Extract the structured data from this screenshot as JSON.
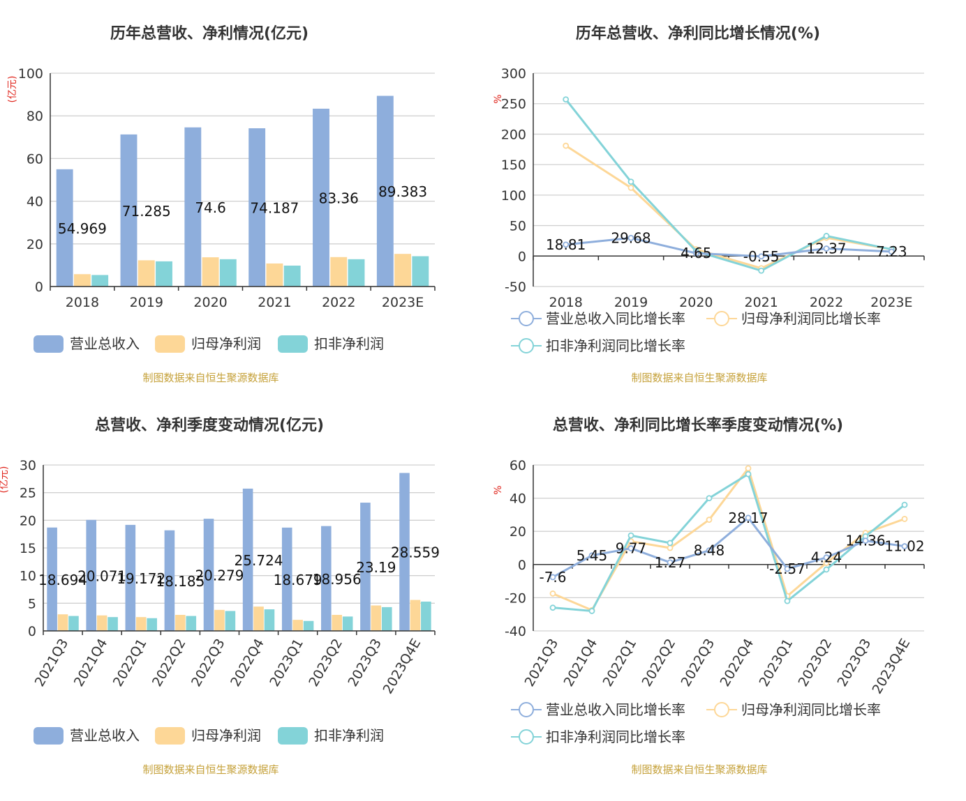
{
  "colors": {
    "revenue": "#8eaedc",
    "parent_profit": "#fdd797",
    "deducted_profit": "#83d3d8",
    "unit": "#e0261d",
    "source": "#c5a13a"
  },
  "legend": {
    "bar": [
      "营业总收入",
      "归母净利润",
      "扣非净利润"
    ],
    "line": [
      "营业总收入同比增长率",
      "归母净利润同比增长率",
      "扣非净利润同比增长率"
    ]
  },
  "source_text": "制图数据来自恒生聚源数据库",
  "chart_data": [
    {
      "type": "bar",
      "title": "历年总营收、净利情况(亿元)",
      "ylabel": "(亿元)",
      "ylim": [
        0,
        100
      ],
      "yticks": [
        0,
        20,
        40,
        60,
        80,
        100
      ],
      "categories": [
        "2018",
        "2019",
        "2020",
        "2021",
        "2022",
        "2023E"
      ],
      "series": [
        {
          "name": "营业总收入",
          "values": [
            54.969,
            71.285,
            74.6,
            74.187,
            83.36,
            89.383
          ],
          "labels": [
            "54.969",
            "71.285",
            "74.6",
            "74.187",
            "83.36",
            "89.383"
          ]
        },
        {
          "name": "归母净利润",
          "values": [
            5.8,
            12.3,
            13.7,
            10.8,
            13.8,
            15.3
          ]
        },
        {
          "name": "扣非净利润",
          "values": [
            5.4,
            11.8,
            12.8,
            9.8,
            12.8,
            14.2
          ]
        }
      ],
      "grid": true,
      "legend_position": "bottom"
    },
    {
      "type": "line",
      "title": "历年总营收、净利同比增长情况(%)",
      "ylabel": "%",
      "ylim": [
        -50,
        300
      ],
      "yticks": [
        -50,
        0,
        50,
        100,
        150,
        200,
        250,
        300
      ],
      "categories": [
        "2018",
        "2019",
        "2020",
        "2021",
        "2022",
        "2023E"
      ],
      "series": [
        {
          "name": "营业总收入同比增长率",
          "values": [
            18.81,
            29.68,
            4.65,
            -0.55,
            12.37,
            7.23
          ],
          "labels": [
            "18.81",
            "29.68",
            "4.65",
            "-0.55",
            "12.37",
            "7.23"
          ]
        },
        {
          "name": "归母净利润同比增长率",
          "values": [
            181,
            112,
            11,
            -20,
            30,
            11
          ]
        },
        {
          "name": "扣非净利润同比增长率",
          "values": [
            257,
            122,
            8,
            -24,
            33,
            11
          ]
        }
      ],
      "grid": true,
      "legend_position": "bottom"
    },
    {
      "type": "bar",
      "title": "总营收、净利季度变动情况(亿元)",
      "ylabel": "(亿元)",
      "ylim": [
        0,
        30
      ],
      "yticks": [
        0,
        5,
        10,
        15,
        20,
        25,
        30
      ],
      "categories": [
        "2021Q3",
        "2021Q4",
        "2022Q1",
        "2022Q2",
        "2022Q3",
        "2022Q4",
        "2023Q1",
        "2023Q2",
        "2023Q3",
        "2023Q4E"
      ],
      "series": [
        {
          "name": "营业总收入",
          "values": [
            18.694,
            20.071,
            19.172,
            18.185,
            20.279,
            25.724,
            18.679,
            18.956,
            23.19,
            28.559
          ],
          "labels": [
            "18.694",
            "20.071",
            "19.172",
            "18.185",
            "20.279",
            "25.724",
            "18.679",
            "18.956",
            "23.19",
            "28.559"
          ]
        },
        {
          "name": "归母净利润",
          "values": [
            3.0,
            2.8,
            2.5,
            2.9,
            3.8,
            4.4,
            2.0,
            2.9,
            4.6,
            5.6
          ]
        },
        {
          "name": "扣非净利润",
          "values": [
            2.7,
            2.5,
            2.3,
            2.7,
            3.6,
            3.9,
            1.8,
            2.6,
            4.3,
            5.3
          ]
        }
      ],
      "grid": true,
      "legend_position": "bottom"
    },
    {
      "type": "line",
      "title": "总营收、净利同比增长率季度变动情况(%)",
      "ylabel": "%",
      "ylim": [
        -40,
        60
      ],
      "yticks": [
        -40,
        -20,
        0,
        20,
        40,
        60
      ],
      "categories": [
        "2021Q3",
        "2021Q4",
        "2022Q1",
        "2022Q2",
        "2022Q3",
        "2022Q4",
        "2023Q1",
        "2023Q2",
        "2023Q3",
        "2023Q4E"
      ],
      "series": [
        {
          "name": "营业总收入同比增长率",
          "values": [
            -7.6,
            5.45,
            9.77,
            1.27,
            8.48,
            28.17,
            -2.57,
            4.24,
            14.36,
            11.02
          ],
          "labels": [
            "-7.6",
            "5.45",
            "9.77",
            "1.27",
            "8.48",
            "28.17",
            "-2.57",
            "4.24",
            "14.36",
            "11.02"
          ]
        },
        {
          "name": "归母净利润同比增长率",
          "values": [
            -17.5,
            -27.5,
            14,
            10,
            27,
            58,
            -19,
            1,
            19,
            27.5
          ]
        },
        {
          "name": "扣非净利润同比增长率",
          "values": [
            -26,
            -28,
            17.5,
            13,
            40,
            54.5,
            -22,
            -3,
            17,
            36
          ]
        }
      ],
      "grid": true,
      "legend_position": "bottom"
    }
  ]
}
